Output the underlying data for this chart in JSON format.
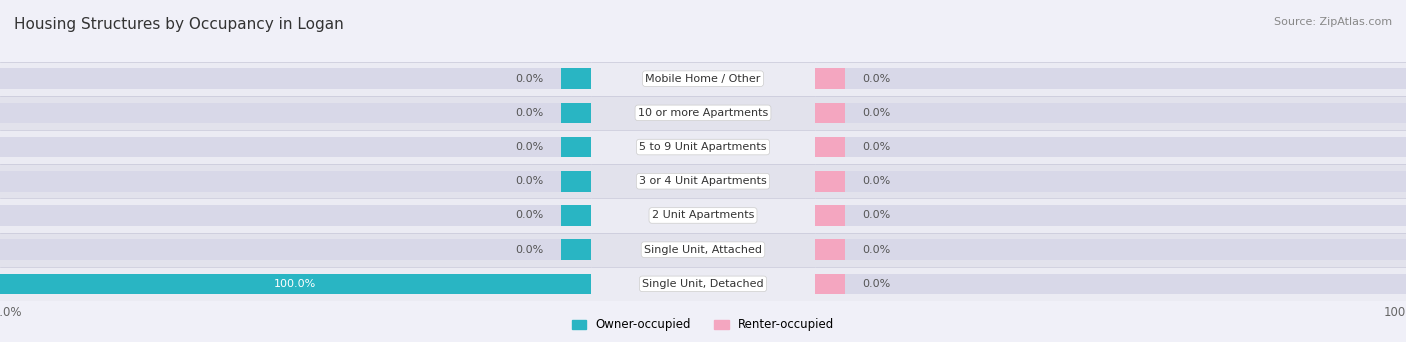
{
  "title": "Housing Structures by Occupancy in Logan",
  "source": "Source: ZipAtlas.com",
  "categories": [
    "Single Unit, Detached",
    "Single Unit, Attached",
    "2 Unit Apartments",
    "3 or 4 Unit Apartments",
    "5 to 9 Unit Apartments",
    "10 or more Apartments",
    "Mobile Home / Other"
  ],
  "owner_values": [
    100.0,
    0.0,
    0.0,
    0.0,
    0.0,
    0.0,
    0.0
  ],
  "renter_values": [
    0.0,
    0.0,
    0.0,
    0.0,
    0.0,
    0.0,
    0.0
  ],
  "owner_color": "#29b5c3",
  "renter_color": "#f4a6c0",
  "bar_bg_color": "#d8d8e8",
  "row_bg_even": "#ebebf3",
  "row_bg_odd": "#e2e2ec",
  "title_fontsize": 11,
  "source_fontsize": 8,
  "tick_fontsize": 8.5,
  "label_fontsize": 8,
  "value_fontsize": 8,
  "legend_owner": "Owner-occupied",
  "legend_renter": "Renter-occupied",
  "bar_height": 0.6,
  "zero_stub": 5.0,
  "background_color": "#f0f0f8"
}
